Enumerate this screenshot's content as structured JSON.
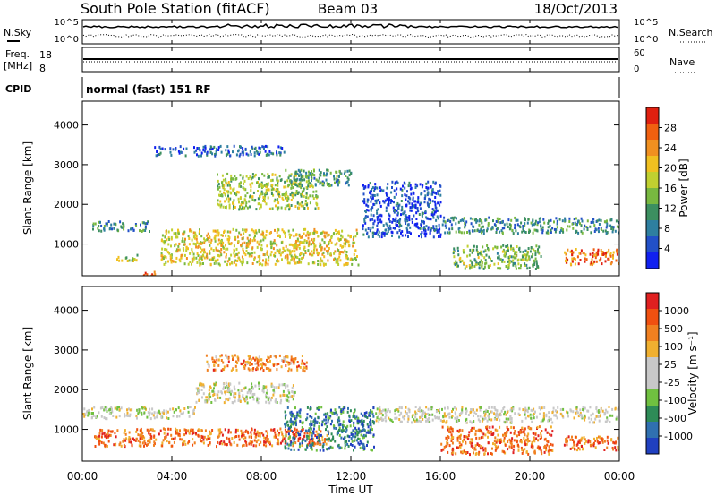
{
  "header": {
    "title": "South Pole Station (fitACF)",
    "beam": "Beam 03",
    "date": "18/Oct/2013"
  },
  "top_panels": {
    "nsky_label": "N.Sky",
    "nsearch_label": "N.Search",
    "noise_tick_high": "10^5",
    "noise_tick_low": "10^0",
    "freq_label_1": "Freq.",
    "freq_label_2": "[MHz]",
    "freq_tick_high": "18",
    "freq_tick_low": "8",
    "nave_label": "Nave",
    "nave_tick_high": "60",
    "nave_tick_low": "0",
    "cpid_label": "CPID",
    "cpid_text": "normal (fast) 151 RF"
  },
  "chart_data": [
    {
      "type": "heatmap",
      "name": "power",
      "ylabel": "Slant Range [km]",
      "yticks": [
        1000,
        2000,
        3000,
        4000
      ],
      "ylim": [
        200,
        4600
      ],
      "xlim_hours": [
        0,
        24
      ],
      "colorbar": {
        "label": "Power [dB]",
        "ticks": [
          "4",
          "8",
          "12",
          "16",
          "20",
          "24",
          "28"
        ],
        "colors": [
          "#1020f0",
          "#2250c8",
          "#2e7fa0",
          "#3c8f60",
          "#78b840",
          "#c0d030",
          "#f0c020",
          "#f09020",
          "#f06010",
          "#e02010"
        ]
      },
      "bands": [
        {
          "t0": 0.3,
          "t1": 3.0,
          "r0": 1350,
          "r1": 1600,
          "level": 0.3
        },
        {
          "t0": 1.5,
          "t1": 2.5,
          "r0": 600,
          "r1": 750,
          "level": 0.5
        },
        {
          "t0": 2.7,
          "t1": 3.4,
          "r0": 200,
          "r1": 350,
          "level": 0.9
        },
        {
          "t0": 3.2,
          "t1": 9.0,
          "r0": 3250,
          "r1": 3500,
          "level": 0.2
        },
        {
          "t0": 3.5,
          "t1": 12.3,
          "r0": 500,
          "r1": 1400,
          "level": 0.6
        },
        {
          "t0": 6.0,
          "t1": 10.5,
          "r0": 1900,
          "r1": 2800,
          "level": 0.5
        },
        {
          "t0": 9.0,
          "t1": 12.0,
          "r0": 2500,
          "r1": 2900,
          "level": 0.35
        },
        {
          "t0": 12.5,
          "t1": 16.0,
          "r0": 1200,
          "r1": 2600,
          "level": 0.15
        },
        {
          "t0": 16.0,
          "t1": 24.0,
          "r0": 1300,
          "r1": 1700,
          "level": 0.3
        },
        {
          "t0": 16.5,
          "t1": 20.5,
          "r0": 400,
          "r1": 1000,
          "level": 0.45
        },
        {
          "t0": 21.5,
          "t1": 24.0,
          "r0": 500,
          "r1": 900,
          "level": 0.8
        }
      ]
    },
    {
      "type": "heatmap",
      "name": "velocity",
      "ylabel": "Slant Range [km]",
      "yticks": [
        1000,
        2000,
        3000,
        4000
      ],
      "ylim": [
        200,
        4600
      ],
      "xlim_hours": [
        0,
        24
      ],
      "xticks": [
        "00:00",
        "04:00",
        "08:00",
        "12:00",
        "16:00",
        "20:00",
        "00:00"
      ],
      "xlabel": "Time UT",
      "colorbar": {
        "label": "Velocity [m s⁻¹]",
        "ticks": [
          "1000",
          "500",
          "100",
          "25",
          "-25",
          "-100",
          "-500",
          "-1000"
        ],
        "colors": [
          "#2040c0",
          "#3070b0",
          "#2e8b57",
          "#70c040",
          "#c8c8c8",
          "#c8c8c8",
          "#f0b030",
          "#f08020",
          "#f05010",
          "#e02020"
        ]
      },
      "bands": [
        {
          "t0": 0.0,
          "t1": 5.0,
          "r0": 1300,
          "r1": 1600,
          "level": 0.5
        },
        {
          "t0": 0.5,
          "t1": 11.0,
          "r0": 600,
          "r1": 1050,
          "level": 0.8
        },
        {
          "t0": 5.0,
          "t1": 9.5,
          "r0": 1700,
          "r1": 2200,
          "level": 0.5
        },
        {
          "t0": 5.5,
          "t1": 10.0,
          "r0": 2500,
          "r1": 2900,
          "level": 0.75
        },
        {
          "t0": 9.0,
          "t1": 13.0,
          "r0": 500,
          "r1": 1600,
          "level": 0.2
        },
        {
          "t0": 13.0,
          "t1": 24.0,
          "r0": 1200,
          "r1": 1600,
          "level": 0.5
        },
        {
          "t0": 16.0,
          "t1": 21.0,
          "r0": 400,
          "r1": 1100,
          "level": 0.8
        },
        {
          "t0": 21.5,
          "t1": 24.0,
          "r0": 500,
          "r1": 850,
          "level": 0.8
        }
      ]
    }
  ]
}
